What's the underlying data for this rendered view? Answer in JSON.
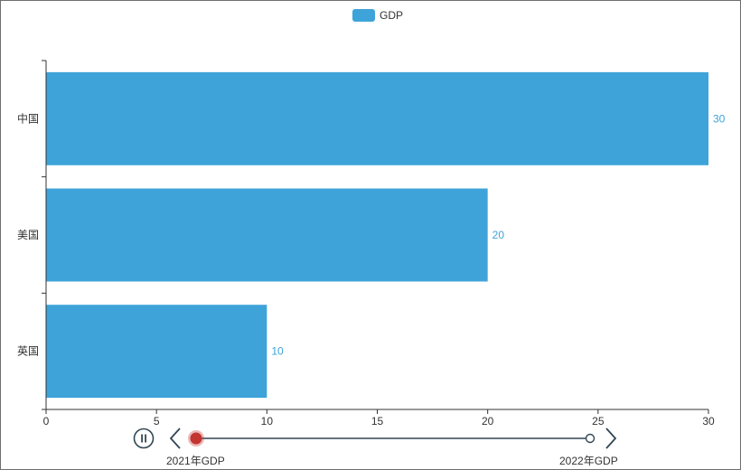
{
  "chart_data": {
    "type": "bar",
    "orientation": "horizontal",
    "categories": [
      "英国",
      "美国",
      "中国"
    ],
    "series": [
      {
        "name": "GDP",
        "values": [
          10,
          20,
          30
        ],
        "color": "#3ea3d8"
      }
    ],
    "xlim": [
      0,
      30
    ],
    "x_ticks": [
      0,
      5,
      10,
      15,
      20,
      25,
      30
    ],
    "data_labels": true,
    "legend_position": "top-center",
    "grid": false
  },
  "timeline": {
    "labels": [
      "2021年GDP",
      "2022年GDP"
    ],
    "current_index": 0,
    "state": "playing",
    "colors": {
      "line": "#304654",
      "active": "#c23531"
    }
  }
}
